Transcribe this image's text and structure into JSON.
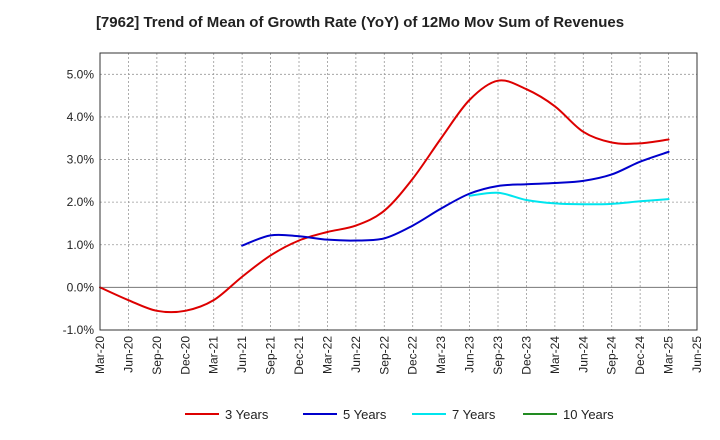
{
  "chart_data": {
    "type": "line",
    "title": "[7962]  Trend of Mean of Growth Rate (YoY) of 12Mo Mov Sum of Revenues",
    "xlabel": "",
    "ylabel": "",
    "ylim": [
      -1.0,
      5.5
    ],
    "y_ticks": [
      -1.0,
      0.0,
      1.0,
      2.0,
      3.0,
      4.0,
      5.0
    ],
    "y_tick_labels": [
      "-1.0%",
      "0.0%",
      "1.0%",
      "2.0%",
      "3.0%",
      "4.0%",
      "5.0%"
    ],
    "x_tick_labels": [
      "Mar-20",
      "Jun-20",
      "Sep-20",
      "Dec-20",
      "Mar-21",
      "Jun-21",
      "Sep-21",
      "Dec-21",
      "Mar-22",
      "Jun-22",
      "Sep-22",
      "Dec-22",
      "Mar-23",
      "Jun-23",
      "Sep-23",
      "Dec-23",
      "Mar-24",
      "Jun-24",
      "Sep-24",
      "Dec-24",
      "Mar-25",
      "Jun-25"
    ],
    "grid": true,
    "legend_position": "bottom",
    "series": [
      {
        "name": "3 Years",
        "color": "#dd0000",
        "x": [
          0,
          1,
          2,
          3,
          4,
          5,
          6,
          7,
          8,
          9,
          10,
          11,
          12,
          13,
          14,
          15,
          16,
          17,
          18,
          19,
          20
        ],
        "values": [
          0.0,
          -0.3,
          -0.55,
          -0.55,
          -0.3,
          0.25,
          0.75,
          1.1,
          1.3,
          1.45,
          1.8,
          2.55,
          3.5,
          4.4,
          4.85,
          4.65,
          4.25,
          3.65,
          3.4,
          3.38,
          3.47
        ]
      },
      {
        "name": "5 Years",
        "color": "#0000cc",
        "x": [
          5,
          6,
          7,
          8,
          9,
          10,
          11,
          12,
          13,
          14,
          15,
          16,
          17,
          18,
          19,
          20
        ],
        "values": [
          0.98,
          1.22,
          1.2,
          1.12,
          1.1,
          1.15,
          1.45,
          1.85,
          2.2,
          2.38,
          2.42,
          2.45,
          2.5,
          2.65,
          2.95,
          3.18
        ]
      },
      {
        "name": "7 Years",
        "color": "#00e5ee",
        "x": [
          13,
          14,
          15,
          16,
          17,
          18,
          19,
          20
        ],
        "values": [
          2.15,
          2.22,
          2.05,
          1.97,
          1.95,
          1.96,
          2.02,
          2.07
        ]
      },
      {
        "name": "10 Years",
        "color": "#228b22",
        "x": [],
        "values": []
      }
    ]
  }
}
